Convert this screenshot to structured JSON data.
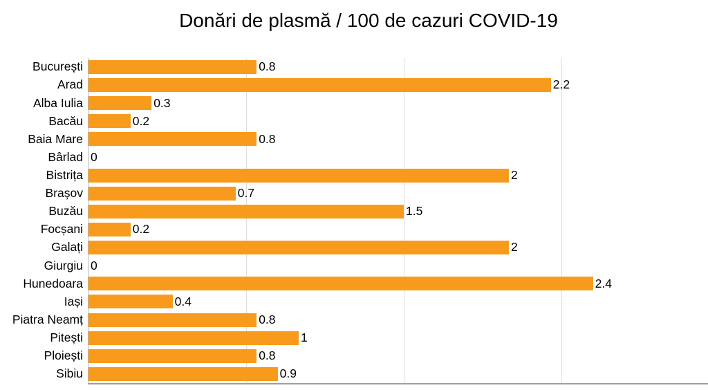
{
  "page": {
    "background": "#FFFFFF"
  },
  "chart_data": {
    "type": "bar",
    "orientation": "horizontal",
    "title": "Donări de plasmă / 100 de cazuri COVID-19",
    "xlabel": "",
    "ylabel": "",
    "categories": [
      "București",
      "Arad",
      "Alba Iulia",
      "Bacău",
      "Baia Mare",
      "Bârlad",
      "Bistrița",
      "Brașov",
      "Buzău",
      "Focșani",
      "Galați",
      "Giurgiu",
      "Hunedoara",
      "Iași",
      "Piatra Neamț",
      "Pitești",
      "Ploiești",
      "Sibiu"
    ],
    "values": [
      0.8,
      2.2,
      0.3,
      0.2,
      0.8,
      0,
      2,
      0.7,
      1.5,
      0.2,
      2,
      0,
      2.4,
      0.4,
      0.8,
      1,
      0.8,
      0.9
    ],
    "value_labels": [
      "0.8",
      "2.2",
      "0.3",
      "0.2",
      "0.8",
      "0",
      "2",
      "0.7",
      "1.5",
      "0.2",
      "2",
      "0",
      "2.4",
      "0.4",
      "0.8",
      "1",
      "0.8",
      "0.9"
    ],
    "xlim": [
      0,
      3
    ],
    "grid_step": 0.75,
    "grid": true,
    "legend": "none",
    "bar_color": "#F89B1C",
    "gridline_color": "#DEDEDE",
    "axis_line_color": "#B7B7B7",
    "baseline_color": "#9E9E9E",
    "text_color": "#000000"
  }
}
